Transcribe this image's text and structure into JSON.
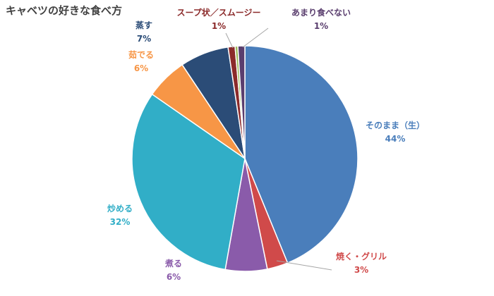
{
  "chart_data": {
    "type": "pie",
    "title": "キャベツの好きな食べ方",
    "slices": [
      {
        "label": "そのまま（生）",
        "value": 44,
        "value_label": "44%",
        "color": "#4A7EBB"
      },
      {
        "label": "焼く・グリル",
        "value": 3,
        "value_label": "3%",
        "color": "#D04A4A"
      },
      {
        "label": "煮る",
        "value": 6,
        "value_label": "6%",
        "color": "#8A5BAA"
      },
      {
        "label": "炒める",
        "value": 32,
        "value_label": "32%",
        "color": "#31AEC7"
      },
      {
        "label": "茹でる",
        "value": 6,
        "value_label": "6%",
        "color": "#F79646"
      },
      {
        "label": "蒸す",
        "value": 7,
        "value_label": "7%",
        "color": "#2B4C77"
      },
      {
        "label": "スープ状／スムージー",
        "value": 1,
        "value_label": "1%",
        "color": "#8B2A2A"
      },
      {
        "label": "",
        "value": 0.4,
        "value_label": "",
        "color": "#9BBB59"
      },
      {
        "label": "あまり食べない",
        "value": 1,
        "value_label": "1%",
        "color": "#5A3E6E"
      }
    ],
    "legend": "none",
    "label_position": "outside"
  }
}
